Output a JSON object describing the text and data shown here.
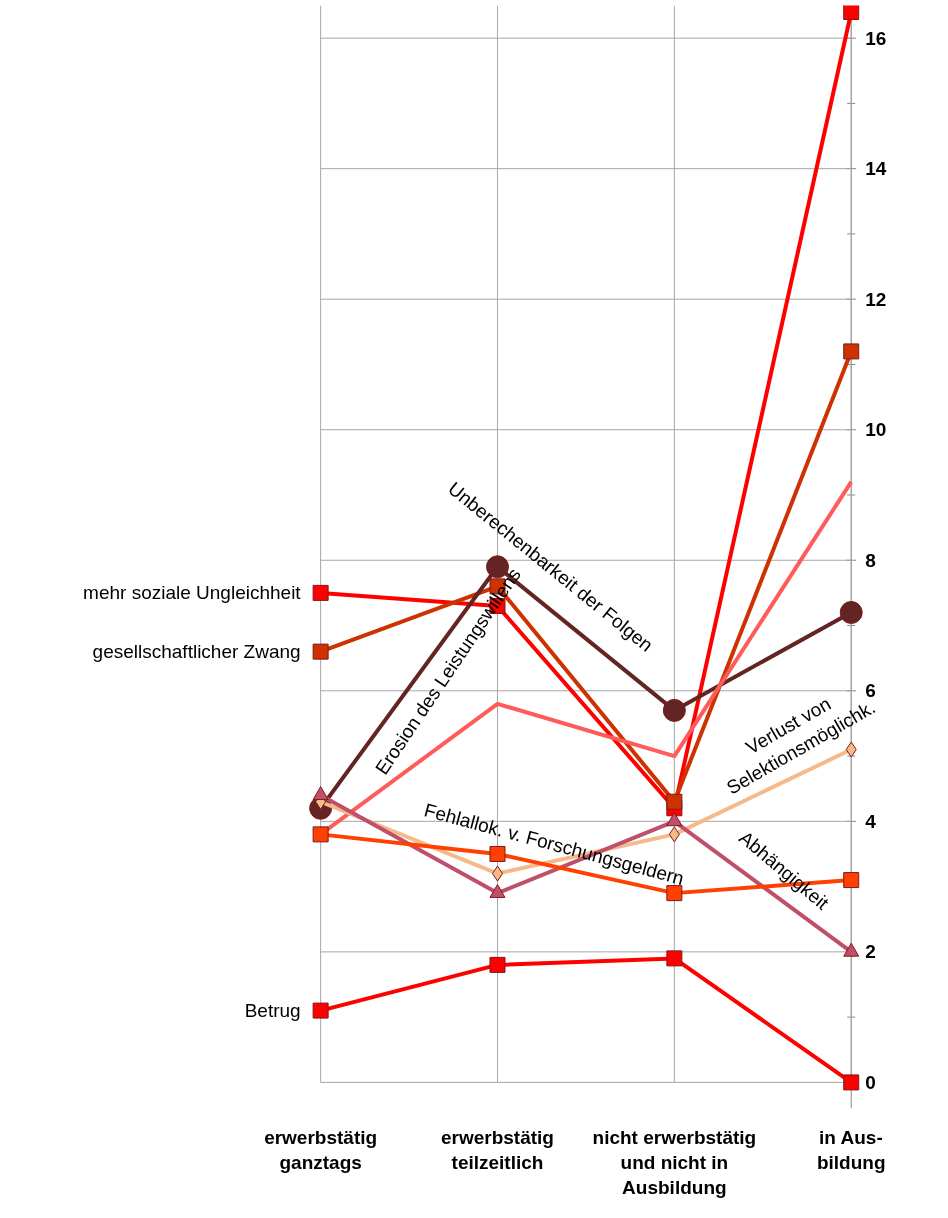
{
  "chart_data": {
    "type": "line",
    "categories": [
      "erwerbstätig\nganztags",
      "erwerbstätig\nteilzeitlich",
      "nicht erwerbstätig\nund nicht in\nAusbildung",
      "in Aus-\nbildung"
    ],
    "series": [
      {
        "name": "mehr soziale Ungleichheit",
        "color": "#ff0000",
        "marker": "square",
        "values": [
          7.5,
          7.3,
          4.2,
          16.4
        ]
      },
      {
        "name": "gesellschaftlicher Zwang",
        "color": "#cc3300",
        "marker": "square",
        "values": [
          6.6,
          7.6,
          4.3,
          11.2
        ]
      },
      {
        "name": "Unberechenbarkeit der Folgen",
        "color": "#632523",
        "marker": "circle",
        "values": [
          4.2,
          7.9,
          5.7,
          7.2
        ]
      },
      {
        "name": "Erosion des Leistungswillens",
        "color": "#ff5b5b",
        "marker": "none",
        "values": [
          3.8,
          5.8,
          5.0,
          9.2
        ]
      },
      {
        "name": "Verlust von\nSelektionsmöglichk.",
        "color": "#f5b98a",
        "marker": "diamond",
        "values": [
          4.3,
          3.2,
          3.8,
          5.1
        ]
      },
      {
        "name": "Abhängigkeit",
        "color": "#c0506a",
        "marker": "triangle",
        "values": [
          4.4,
          2.9,
          4.0,
          2.0
        ]
      },
      {
        "name": "Fehlallok. v. Forschungsgeldern",
        "color": "#ff4000",
        "marker": "square",
        "values": [
          3.8,
          3.5,
          2.9,
          3.1
        ]
      },
      {
        "name": "Betrug",
        "color": "#ff0000",
        "marker": "square",
        "values": [
          1.1,
          1.8,
          1.9,
          0.0
        ]
      }
    ],
    "ylim": [
      -0.4,
      16.5
    ],
    "yticks": [
      0,
      2,
      4,
      6,
      8,
      10,
      12,
      14,
      16
    ],
    "grid": true
  }
}
